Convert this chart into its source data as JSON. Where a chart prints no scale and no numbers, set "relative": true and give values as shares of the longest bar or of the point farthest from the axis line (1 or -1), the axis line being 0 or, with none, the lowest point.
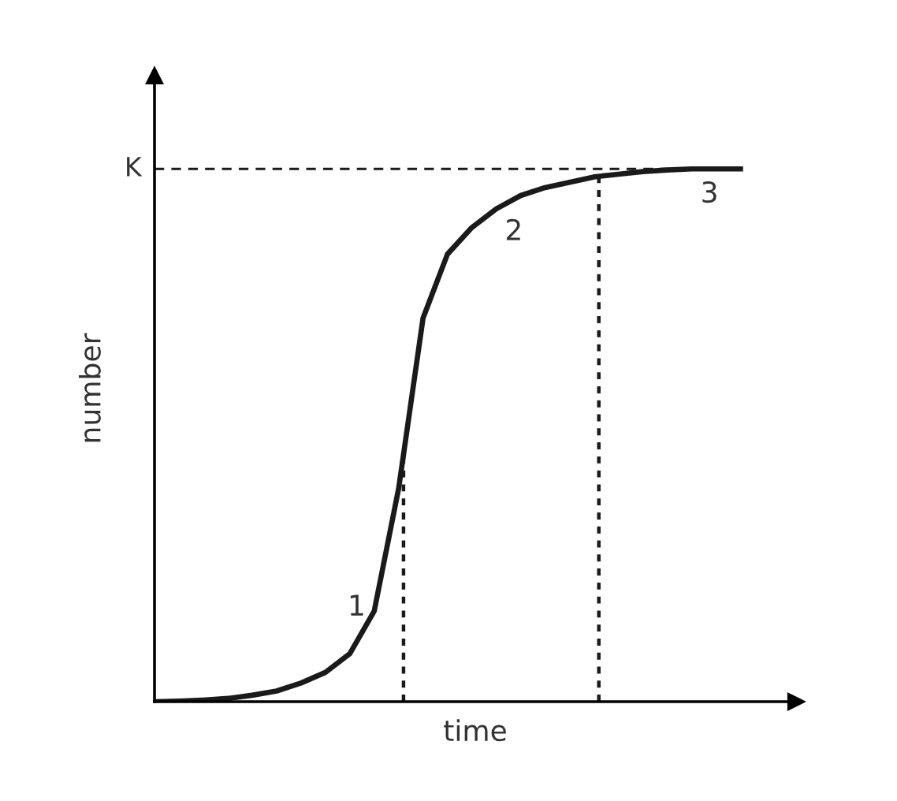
{
  "chart_data": {
    "type": "line",
    "relative": true,
    "xlabel": "time",
    "ylabel": "number",
    "categories": [
      null,
      null,
      null,
      null,
      null,
      null,
      null,
      null,
      null,
      null,
      null,
      null,
      null,
      null,
      null,
      null,
      null,
      null,
      null,
      null,
      null,
      null,
      null,
      null,
      null
    ],
    "series": [
      {
        "color": "#1a1a1a",
        "values": [
          0,
          0.001,
          0.003,
          0.006,
          0.012,
          0.02,
          0.035,
          0.055,
          0.09,
          0.17,
          0.4,
          0.72,
          0.84,
          0.89,
          0.925,
          0.95,
          0.965,
          0.975,
          0.985,
          0.99,
          0.995,
          0.998,
          1.0,
          1.0,
          1.0
        ]
      }
    ],
    "ref_lines": [
      {
        "axis": "y",
        "value": 1,
        "label": "K",
        "line_style": "dashed",
        "color": "#1a1a1a"
      }
    ],
    "annotations": [
      "1",
      "2",
      "3"
    ],
    "marker": "none",
    "line_style": "solid"
  }
}
